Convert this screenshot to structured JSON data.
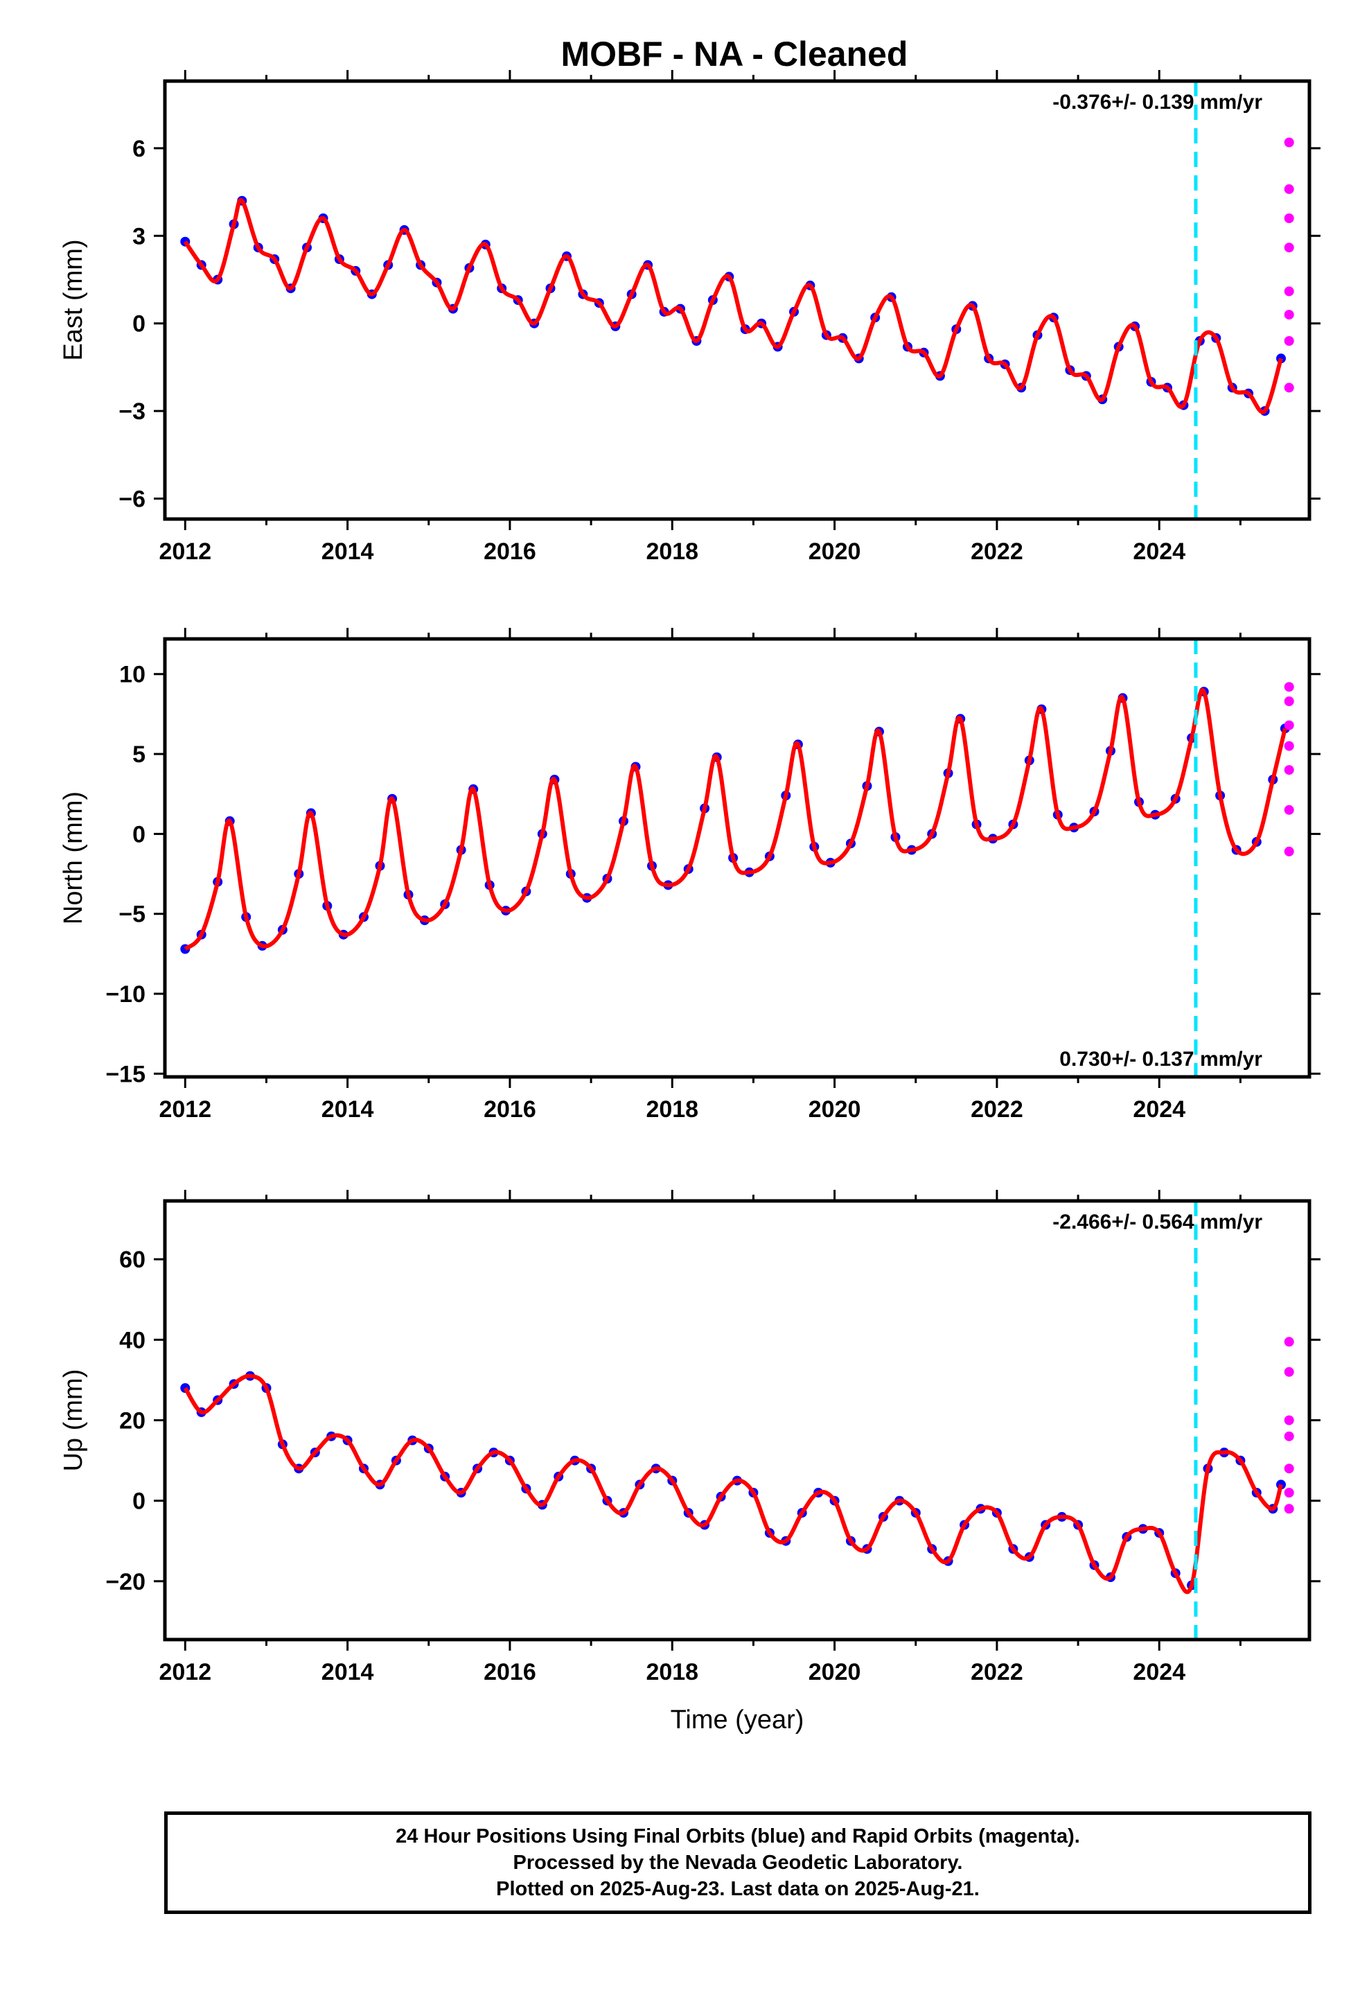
{
  "title": "MOBF  - NA - Cleaned",
  "footer": {
    "line1": "24 Hour Positions Using Final Orbits (blue) and Rapid Orbits (magenta).",
    "line2": "Processed by the Nevada Geodetic Laboratory.",
    "line3": "Plotted on 2025-Aug-23. Last data on 2025-Aug-21."
  },
  "colors": {
    "final_orbits": "#0000ff",
    "rapid_orbits": "#ff00ff",
    "model": "#ff0000",
    "equipment_change": "#00e5ff"
  },
  "chart_data": [
    {
      "type": "scatter",
      "ylabel": "East (mm)",
      "xlabel": "",
      "xlim": [
        2011.75,
        2025.85
      ],
      "ylim": [
        -6.7,
        8.3
      ],
      "xticks": [
        2012,
        2014,
        2016,
        2018,
        2020,
        2022,
        2024
      ],
      "yticks": [
        -6,
        -3,
        0,
        3,
        6
      ],
      "rate_label": "-0.376+/- 0.139 mm/yr",
      "rate_position": "top-right",
      "equipment_change_x": 2024.45,
      "series": [
        {
          "kind": "final",
          "x": [
            2012.0,
            2012.2,
            2012.4,
            2012.6,
            2012.7,
            2012.9,
            2013.1,
            2013.3,
            2013.5,
            2013.7,
            2013.9,
            2014.1,
            2014.3,
            2014.5,
            2014.7,
            2014.9,
            2015.1,
            2015.3,
            2015.5,
            2015.7,
            2015.9,
            2016.1,
            2016.3,
            2016.5,
            2016.7,
            2016.9,
            2017.1,
            2017.3,
            2017.5,
            2017.7,
            2017.9,
            2018.1,
            2018.3,
            2018.5,
            2018.7,
            2018.9,
            2019.1,
            2019.3,
            2019.5,
            2019.7,
            2019.9,
            2020.1,
            2020.3,
            2020.5,
            2020.7,
            2020.9,
            2021.1,
            2021.3,
            2021.5,
            2021.7,
            2021.9,
            2022.1,
            2022.3,
            2022.5,
            2022.7,
            2022.9,
            2023.1,
            2023.3,
            2023.5,
            2023.7,
            2023.9,
            2024.1,
            2024.3,
            2024.5,
            2024.7,
            2024.9,
            2025.1,
            2025.3,
            2025.5
          ],
          "y": [
            2.8,
            2.0,
            1.5,
            3.4,
            4.2,
            2.6,
            2.2,
            1.2,
            2.6,
            3.6,
            2.2,
            1.8,
            1.0,
            2.0,
            3.2,
            2.0,
            1.4,
            0.5,
            1.9,
            2.7,
            1.2,
            0.8,
            0.0,
            1.2,
            2.3,
            1.0,
            0.7,
            -0.1,
            1.0,
            2.0,
            0.4,
            0.5,
            -0.6,
            0.8,
            1.6,
            -0.2,
            0.0,
            -0.8,
            0.4,
            1.3,
            -0.4,
            -0.5,
            -1.2,
            0.2,
            0.9,
            -0.8,
            -1.0,
            -1.8,
            -0.2,
            0.6,
            -1.2,
            -1.4,
            -2.2,
            -0.4,
            0.2,
            -1.6,
            -1.8,
            -2.6,
            -0.8,
            -0.1,
            -2.0,
            -2.2,
            -2.8,
            -0.6,
            -0.5,
            -2.2,
            -2.4,
            -3.0,
            -1.2
          ]
        },
        {
          "kind": "rapid",
          "x": [
            2025.6,
            2025.6,
            2025.6,
            2025.6,
            2025.6,
            2025.6,
            2025.6,
            2025.6
          ],
          "y": [
            6.2,
            4.6,
            3.6,
            2.6,
            1.1,
            0.3,
            -0.6,
            -2.2
          ]
        }
      ]
    },
    {
      "type": "scatter",
      "ylabel": "North (mm)",
      "xlabel": "",
      "xlim": [
        2011.75,
        2025.85
      ],
      "ylim": [
        -15.2,
        12.2
      ],
      "xticks": [
        2012,
        2014,
        2016,
        2018,
        2020,
        2022,
        2024
      ],
      "yticks": [
        -15,
        -10,
        -5,
        0,
        5,
        10
      ],
      "rate_label": "0.730+/- 0.137 mm/yr",
      "rate_position": "bottom-right",
      "equipment_change_x": 2024.45,
      "series": [
        {
          "kind": "final",
          "x": [
            2012.0,
            2012.2,
            2012.4,
            2012.55,
            2012.75,
            2012.95,
            2013.2,
            2013.4,
            2013.55,
            2013.75,
            2013.95,
            2014.2,
            2014.4,
            2014.55,
            2014.75,
            2014.95,
            2015.2,
            2015.4,
            2015.55,
            2015.75,
            2015.95,
            2016.2,
            2016.4,
            2016.55,
            2016.75,
            2016.95,
            2017.2,
            2017.4,
            2017.55,
            2017.75,
            2017.95,
            2018.2,
            2018.4,
            2018.55,
            2018.75,
            2018.95,
            2019.2,
            2019.4,
            2019.55,
            2019.75,
            2019.95,
            2020.2,
            2020.4,
            2020.55,
            2020.75,
            2020.95,
            2021.2,
            2021.4,
            2021.55,
            2021.75,
            2021.95,
            2022.2,
            2022.4,
            2022.55,
            2022.75,
            2022.95,
            2023.2,
            2023.4,
            2023.55,
            2023.75,
            2023.95,
            2024.2,
            2024.4,
            2024.55,
            2024.75,
            2024.95,
            2025.2,
            2025.4,
            2025.55
          ],
          "y": [
            -7.2,
            -6.3,
            -3.0,
            0.8,
            -5.2,
            -7.0,
            -6.0,
            -2.5,
            1.3,
            -4.5,
            -6.3,
            -5.2,
            -2.0,
            2.2,
            -3.8,
            -5.4,
            -4.4,
            -1.0,
            2.8,
            -3.2,
            -4.8,
            -3.6,
            0.0,
            3.4,
            -2.5,
            -4.0,
            -2.8,
            0.8,
            4.2,
            -2.0,
            -3.2,
            -2.2,
            1.6,
            4.8,
            -1.5,
            -2.4,
            -1.4,
            2.4,
            5.6,
            -0.8,
            -1.8,
            -0.6,
            3.0,
            6.4,
            -0.2,
            -1.0,
            0.0,
            3.8,
            7.2,
            0.6,
            -0.3,
            0.6,
            4.6,
            7.8,
            1.2,
            0.4,
            1.4,
            5.2,
            8.5,
            2.0,
            1.2,
            2.2,
            6.0,
            8.9,
            2.4,
            -1.0,
            -0.5,
            3.4,
            6.6
          ]
        },
        {
          "kind": "rapid",
          "x": [
            2025.6,
            2025.6,
            2025.6,
            2025.6,
            2025.6,
            2025.6,
            2025.6
          ],
          "y": [
            9.2,
            8.3,
            6.8,
            5.5,
            4.0,
            1.5,
            -1.1
          ]
        }
      ]
    },
    {
      "type": "scatter",
      "ylabel": "Up (mm)",
      "xlabel": "Time (year)",
      "xlim": [
        2011.75,
        2025.85
      ],
      "ylim": [
        -34.5,
        74.5
      ],
      "xticks": [
        2012,
        2014,
        2016,
        2018,
        2020,
        2022,
        2024
      ],
      "yticks": [
        -20,
        0,
        20,
        40,
        60
      ],
      "rate_label": "-2.466+/- 0.564 mm/yr",
      "rate_position": "top-right",
      "equipment_change_x": 2024.45,
      "series": [
        {
          "kind": "final",
          "x": [
            2012.0,
            2012.2,
            2012.4,
            2012.6,
            2012.8,
            2013.0,
            2013.2,
            2013.4,
            2013.6,
            2013.8,
            2014.0,
            2014.2,
            2014.4,
            2014.6,
            2014.8,
            2015.0,
            2015.2,
            2015.4,
            2015.6,
            2015.8,
            2016.0,
            2016.2,
            2016.4,
            2016.6,
            2016.8,
            2017.0,
            2017.2,
            2017.4,
            2017.6,
            2017.8,
            2018.0,
            2018.2,
            2018.4,
            2018.6,
            2018.8,
            2019.0,
            2019.2,
            2019.4,
            2019.6,
            2019.8,
            2020.0,
            2020.2,
            2020.4,
            2020.6,
            2020.8,
            2021.0,
            2021.2,
            2021.4,
            2021.6,
            2021.8,
            2022.0,
            2022.2,
            2022.4,
            2022.6,
            2022.8,
            2023.0,
            2023.2,
            2023.4,
            2023.6,
            2023.8,
            2024.0,
            2024.2,
            2024.4,
            2024.6,
            2024.8,
            2025.0,
            2025.2,
            2025.4,
            2025.5
          ],
          "y": [
            28,
            22,
            25,
            29,
            31,
            28,
            14,
            8,
            12,
            16,
            15,
            8,
            4,
            10,
            15,
            13,
            6,
            2,
            8,
            12,
            10,
            3,
            -1,
            6,
            10,
            8,
            0,
            -3,
            4,
            8,
            5,
            -3,
            -6,
            1,
            5,
            2,
            -8,
            -10,
            -3,
            2,
            0,
            -10,
            -12,
            -4,
            0,
            -3,
            -12,
            -15,
            -6,
            -2,
            -3,
            -12,
            -14,
            -6,
            -4,
            -6,
            -16,
            -19,
            -9,
            -7,
            -8,
            -18,
            -21,
            8,
            12,
            10,
            2,
            -2,
            4
          ]
        },
        {
          "kind": "rapid",
          "x": [
            2025.6,
            2025.6,
            2025.6,
            2025.6,
            2025.6,
            2025.6,
            2025.6
          ],
          "y": [
            39.5,
            32.0,
            20.0,
            16.0,
            8.0,
            2.0,
            -2.0
          ]
        }
      ]
    }
  ]
}
